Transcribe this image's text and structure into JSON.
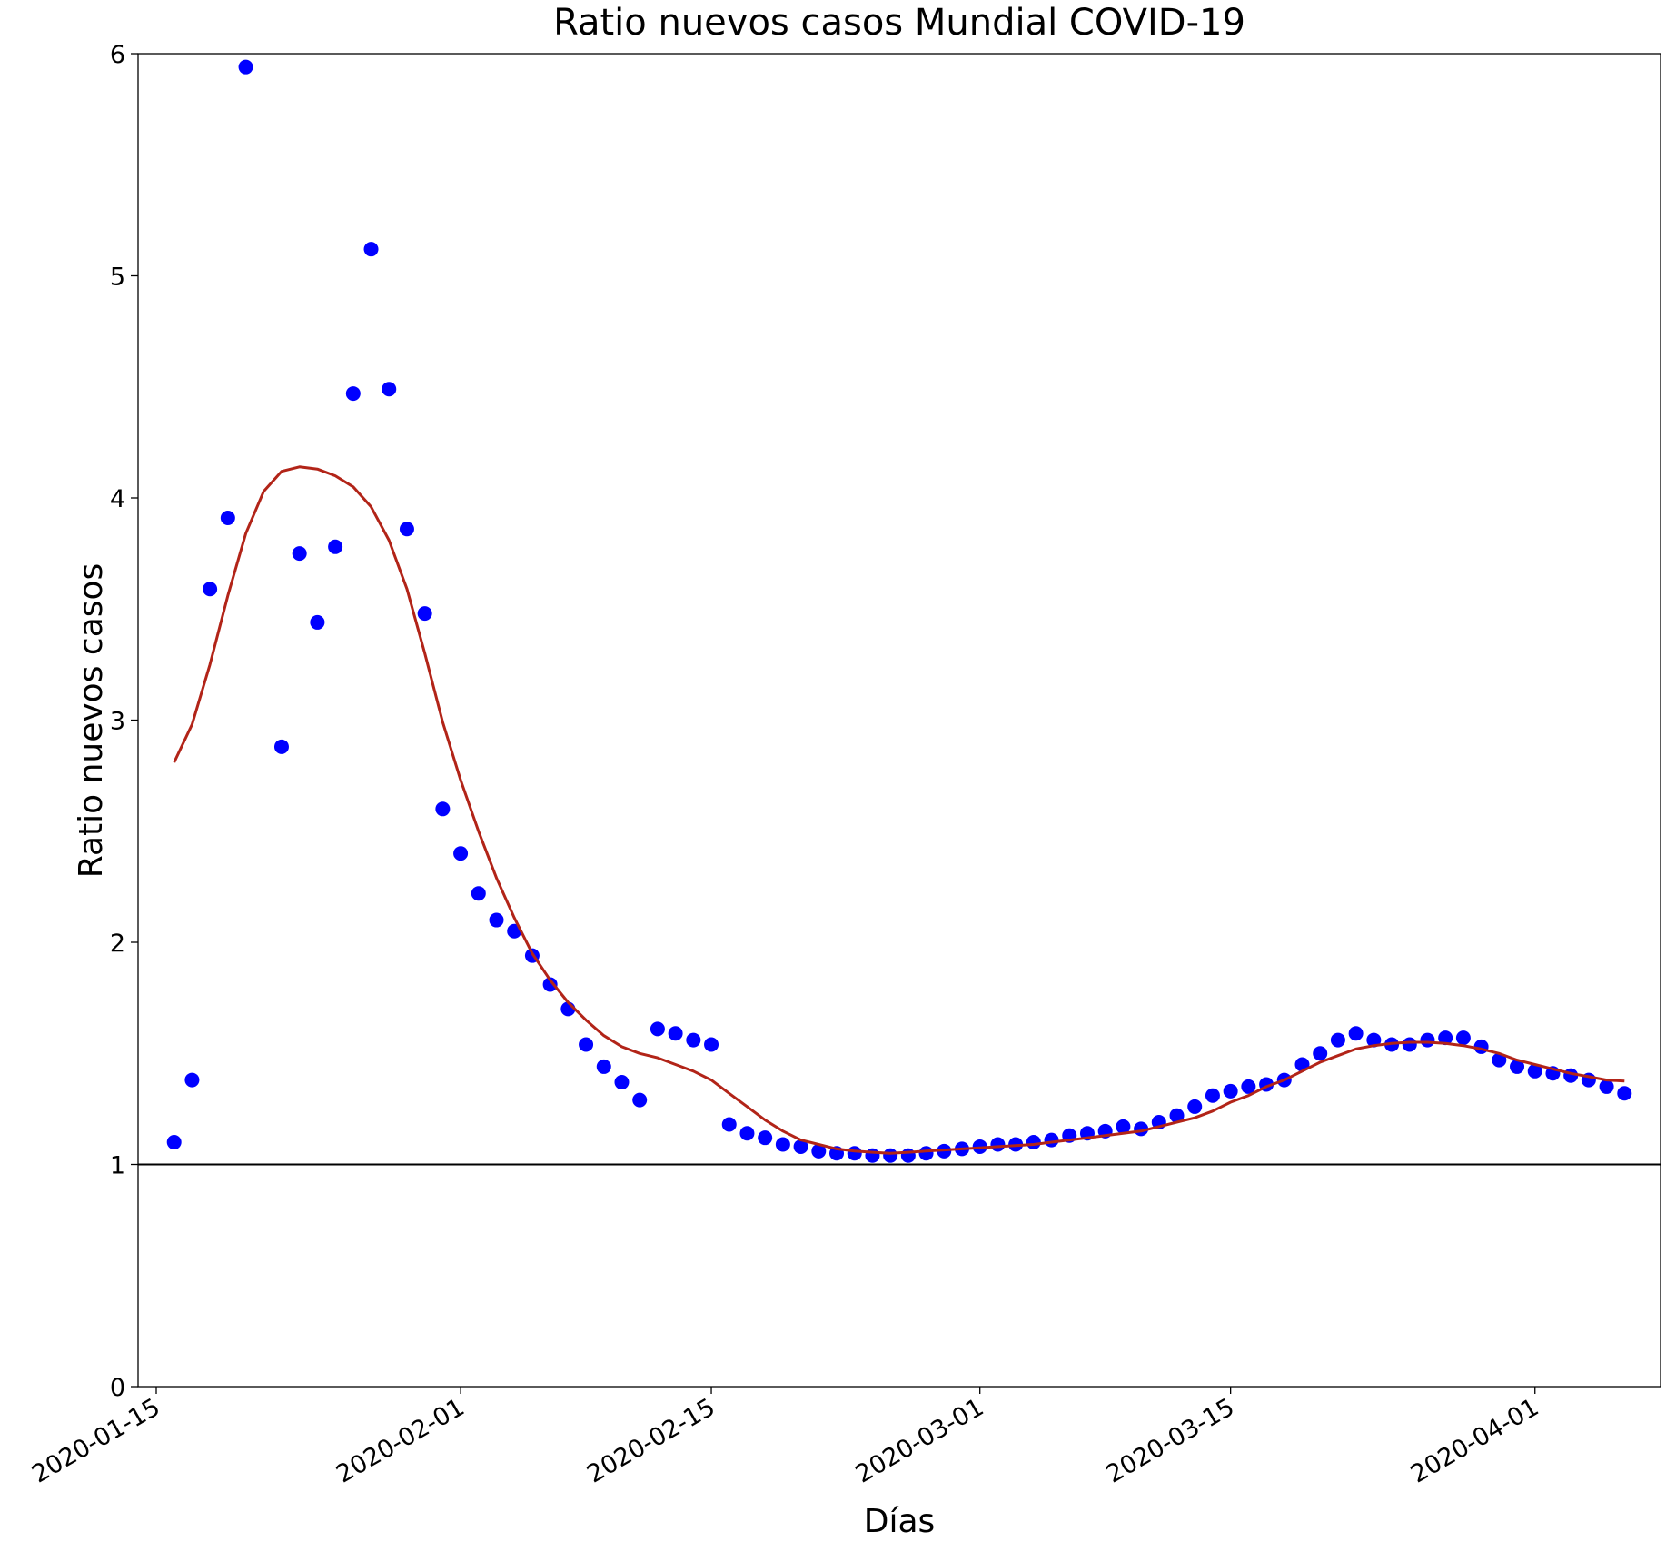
{
  "chart_data": {
    "type": "scatter",
    "title": "Ratio nuevos casos Mundial COVID-19",
    "xlabel": "Días",
    "ylabel": "Ratio nuevos casos",
    "xlim": [
      "2020-01-15",
      "2020-04-07"
    ],
    "ylim": [
      0,
      6
    ],
    "x_ticks": [
      "2020-01-15",
      "2020-02-01",
      "2020-02-15",
      "2020-03-01",
      "2020-03-15",
      "2020-04-01"
    ],
    "y_ticks": [
      "0",
      "1",
      "2",
      "3",
      "4",
      "5",
      "6"
    ],
    "reference_line_y": 1,
    "grid": false,
    "colors": {
      "points": "#0000ff",
      "trend": "#b22418",
      "reference": "#000000"
    },
    "series": [
      {
        "kind": "scatter",
        "x": [
          "2020-01-16",
          "2020-01-17",
          "2020-01-18",
          "2020-01-19",
          "2020-01-20",
          "2020-01-22",
          "2020-01-23",
          "2020-01-24",
          "2020-01-25",
          "2020-01-26",
          "2020-01-27",
          "2020-01-28",
          "2020-01-29",
          "2020-01-30",
          "2020-01-31",
          "2020-02-01",
          "2020-02-02",
          "2020-02-03",
          "2020-02-04",
          "2020-02-05",
          "2020-02-06",
          "2020-02-07",
          "2020-02-08",
          "2020-02-09",
          "2020-02-10",
          "2020-02-11",
          "2020-02-12",
          "2020-02-13",
          "2020-02-14",
          "2020-02-15",
          "2020-02-16",
          "2020-02-17",
          "2020-02-18",
          "2020-02-19",
          "2020-02-20",
          "2020-02-21",
          "2020-02-22",
          "2020-02-23",
          "2020-02-24",
          "2020-02-25",
          "2020-02-26",
          "2020-02-27",
          "2020-02-28",
          "2020-02-29",
          "2020-03-01",
          "2020-03-02",
          "2020-03-03",
          "2020-03-04",
          "2020-03-05",
          "2020-03-06",
          "2020-03-07",
          "2020-03-08",
          "2020-03-09",
          "2020-03-10",
          "2020-03-11",
          "2020-03-12",
          "2020-03-13",
          "2020-03-14",
          "2020-03-15",
          "2020-03-16",
          "2020-03-17",
          "2020-03-18",
          "2020-03-19",
          "2020-03-20",
          "2020-03-21",
          "2020-03-22",
          "2020-03-23",
          "2020-03-24",
          "2020-03-25",
          "2020-03-26",
          "2020-03-27",
          "2020-03-28",
          "2020-03-29",
          "2020-03-30",
          "2020-03-31",
          "2020-04-01",
          "2020-04-02",
          "2020-04-03",
          "2020-04-04",
          "2020-04-05",
          "2020-04-06"
        ],
        "y": [
          1.1,
          1.38,
          3.59,
          3.91,
          5.94,
          2.88,
          3.75,
          3.44,
          3.78,
          4.47,
          5.12,
          4.49,
          3.86,
          3.48,
          2.6,
          2.4,
          2.22,
          2.1,
          2.05,
          1.94,
          1.81,
          1.7,
          1.54,
          1.44,
          1.37,
          1.29,
          1.61,
          1.59,
          1.56,
          1.54,
          1.18,
          1.14,
          1.12,
          1.09,
          1.08,
          1.06,
          1.05,
          1.05,
          1.04,
          1.04,
          1.04,
          1.05,
          1.06,
          1.07,
          1.08,
          1.09,
          1.09,
          1.1,
          1.11,
          1.13,
          1.14,
          1.15,
          1.17,
          1.16,
          1.19,
          1.22,
          1.26,
          1.31,
          1.33,
          1.35,
          1.36,
          1.38,
          1.45,
          1.5,
          1.56,
          1.59,
          1.56,
          1.54,
          1.54,
          1.56,
          1.57,
          1.57,
          1.53,
          1.47,
          1.44,
          1.42,
          1.41,
          1.4,
          1.38,
          1.35,
          1.32
        ]
      },
      {
        "kind": "line",
        "x": [
          "2020-01-16",
          "2020-01-17",
          "2020-01-18",
          "2020-01-19",
          "2020-01-20",
          "2020-01-21",
          "2020-01-22",
          "2020-01-23",
          "2020-01-24",
          "2020-01-25",
          "2020-01-26",
          "2020-01-27",
          "2020-01-28",
          "2020-01-29",
          "2020-01-30",
          "2020-01-31",
          "2020-02-01",
          "2020-02-02",
          "2020-02-03",
          "2020-02-04",
          "2020-02-05",
          "2020-02-06",
          "2020-02-07",
          "2020-02-08",
          "2020-02-09",
          "2020-02-10",
          "2020-02-11",
          "2020-02-12",
          "2020-02-13",
          "2020-02-14",
          "2020-02-15",
          "2020-02-16",
          "2020-02-17",
          "2020-02-18",
          "2020-02-19",
          "2020-02-20",
          "2020-02-21",
          "2020-02-22",
          "2020-02-23",
          "2020-02-24",
          "2020-02-25",
          "2020-02-26",
          "2020-02-27",
          "2020-02-28",
          "2020-02-29",
          "2020-03-01",
          "2020-03-02",
          "2020-03-03",
          "2020-03-04",
          "2020-03-05",
          "2020-03-06",
          "2020-03-07",
          "2020-03-08",
          "2020-03-09",
          "2020-03-10",
          "2020-03-11",
          "2020-03-12",
          "2020-03-13",
          "2020-03-14",
          "2020-03-15",
          "2020-03-16",
          "2020-03-17",
          "2020-03-18",
          "2020-03-19",
          "2020-03-20",
          "2020-03-21",
          "2020-03-22",
          "2020-03-23",
          "2020-03-24",
          "2020-03-25",
          "2020-03-26",
          "2020-03-27",
          "2020-03-28",
          "2020-03-29",
          "2020-03-30",
          "2020-03-31",
          "2020-04-01",
          "2020-04-02",
          "2020-04-03",
          "2020-04-04",
          "2020-04-05",
          "2020-04-06"
        ],
        "y": [
          2.81,
          2.98,
          3.25,
          3.56,
          3.84,
          4.03,
          4.12,
          4.14,
          4.13,
          4.1,
          4.05,
          3.96,
          3.81,
          3.59,
          3.3,
          2.99,
          2.73,
          2.5,
          2.29,
          2.11,
          1.95,
          1.83,
          1.73,
          1.65,
          1.58,
          1.53,
          1.5,
          1.48,
          1.45,
          1.42,
          1.38,
          1.32,
          1.26,
          1.2,
          1.15,
          1.11,
          1.09,
          1.07,
          1.06,
          1.055,
          1.05,
          1.055,
          1.06,
          1.065,
          1.07,
          1.075,
          1.08,
          1.085,
          1.09,
          1.1,
          1.11,
          1.12,
          1.13,
          1.14,
          1.15,
          1.17,
          1.19,
          1.21,
          1.24,
          1.28,
          1.31,
          1.35,
          1.38,
          1.42,
          1.46,
          1.49,
          1.52,
          1.535,
          1.545,
          1.55,
          1.55,
          1.545,
          1.535,
          1.52,
          1.5,
          1.47,
          1.45,
          1.43,
          1.41,
          1.395,
          1.38,
          1.375
        ]
      }
    ]
  }
}
